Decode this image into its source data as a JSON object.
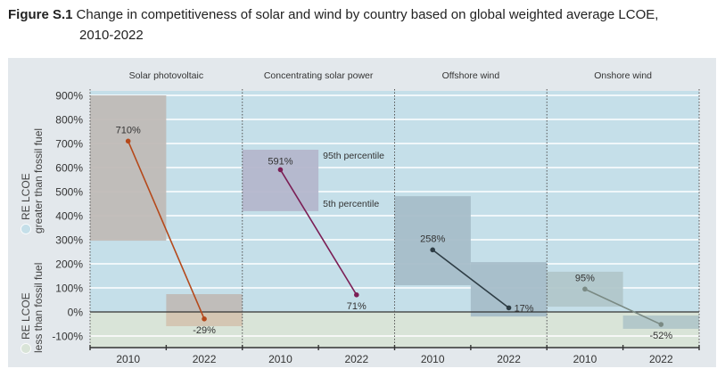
{
  "figure": {
    "label": "Figure S.1",
    "title_line1": "Change in competitiveness of solar and wind by country based on global weighted average LCOE,",
    "title_line2": "2010-2022"
  },
  "legend": {
    "upper": {
      "line1": "RE LCOE",
      "line2": "greater than fossil fuel",
      "color": "#c5dfe9"
    },
    "lower": {
      "line1": "RE LCOE",
      "line2": "less than fossil fuel",
      "color": "#d9e4d8"
    }
  },
  "colors": {
    "panel_bg": "#e3e8ec",
    "upper_bg": "#c5dfe9",
    "lower_bg": "#d9e4d8",
    "gridline": "#ffffff",
    "zero_line": "#333333"
  },
  "chart_data": {
    "type": "line",
    "title": "Change in competitiveness of solar and wind by country based on global weighted average LCOE, 2010-2022",
    "xlabel": "",
    "ylabel": "",
    "ylim": [
      -150,
      900
    ],
    "yticks": [
      900,
      800,
      700,
      600,
      500,
      400,
      300,
      200,
      100,
      0,
      -100
    ],
    "ytick_labels": [
      "900%",
      "800%",
      "700%",
      "600%",
      "500%",
      "400%",
      "300%",
      "200%",
      "100%",
      "0%",
      "-100%"
    ],
    "grid": true,
    "categories": [
      "2010",
      "2022"
    ],
    "annotations": {
      "p95": "95th percentile",
      "p5": "5th percentile"
    },
    "series": [
      {
        "name": "Solar photovoltaic",
        "color": "#b5491b",
        "box_color": "#bfbab5",
        "values": [
          710,
          -29
        ],
        "labels": [
          "710%",
          "-29%"
        ],
        "p5": [
          296,
          -59
        ],
        "p95": [
          900,
          74
        ]
      },
      {
        "name": "Concentrating solar power",
        "color": "#7b1e55",
        "box_color": "#b3b5cb",
        "values": [
          591,
          71
        ],
        "labels": [
          "591%",
          "71%"
        ],
        "p5": [
          419,
          null
        ],
        "p95": [
          674,
          null
        ]
      },
      {
        "name": "Offshore wind",
        "color": "#2e3d45",
        "box_color": "#a5bcc8",
        "values": [
          258,
          17
        ],
        "labels": [
          "258%",
          "17%"
        ],
        "p5": [
          111,
          -19
        ],
        "p95": [
          481,
          207
        ]
      },
      {
        "name": "Onshore wind",
        "color": "#7a8a84",
        "box_color": "#b0c6c9",
        "values": [
          95,
          -52
        ],
        "labels": [
          "95%",
          "-52%"
        ],
        "p5": [
          22,
          -70
        ],
        "p95": [
          167,
          -15
        ]
      }
    ]
  }
}
